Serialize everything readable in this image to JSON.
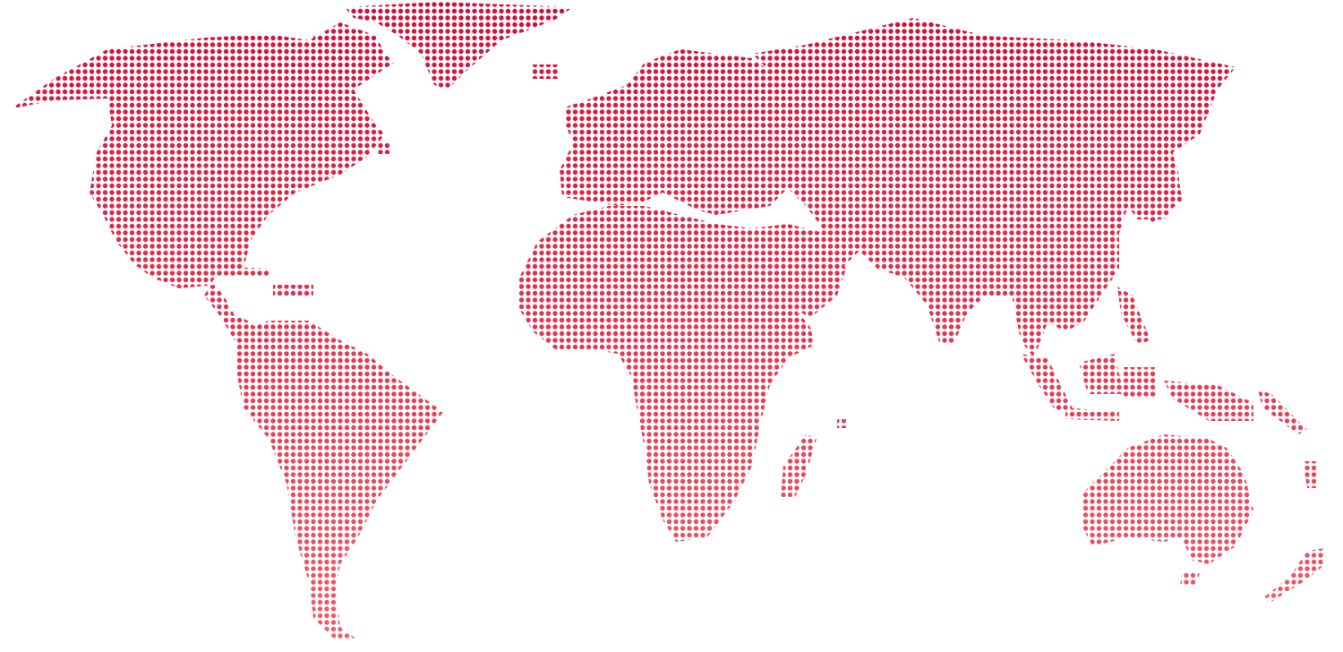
{
  "map": {
    "style": "dotted-world-map",
    "projection": "equirectangular",
    "dot_shape": "circle",
    "colors": {
      "background": "#ffffff",
      "gradient_top": "#d0103a",
      "gradient_bottom": "#f0606c"
    },
    "regions": [
      {
        "name": "north-america"
      },
      {
        "name": "greenland"
      },
      {
        "name": "south-america"
      },
      {
        "name": "europe"
      },
      {
        "name": "africa"
      },
      {
        "name": "asia"
      },
      {
        "name": "madagascar"
      },
      {
        "name": "maritime-southeast-asia"
      },
      {
        "name": "new-guinea"
      },
      {
        "name": "australia"
      },
      {
        "name": "new-zealand"
      },
      {
        "name": "pacific-islands"
      }
    ]
  }
}
